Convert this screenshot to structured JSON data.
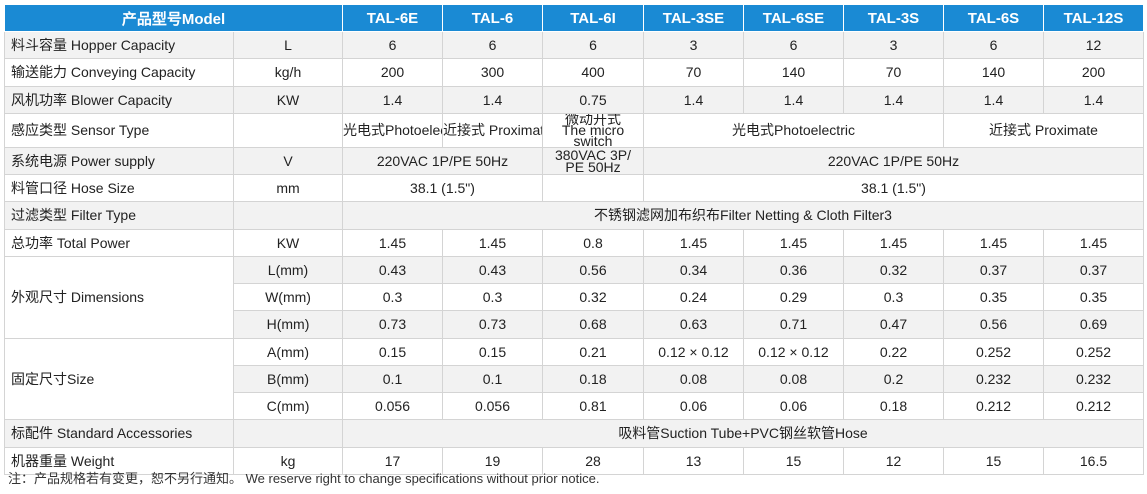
{
  "header": {
    "model": "产品型号Model",
    "models": [
      "TAL-6E",
      "TAL-6",
      "TAL-6I",
      "TAL-3SE",
      "TAL-6SE",
      "TAL-3S",
      "TAL-6S",
      "TAL-12S"
    ]
  },
  "rows": {
    "hopper": {
      "label": "料斗容量 Hopper Capacity",
      "unit": "L",
      "values": [
        "6",
        "6",
        "6",
        "3",
        "6",
        "3",
        "6",
        "12"
      ]
    },
    "conveying": {
      "label": "输送能力 Conveying Capacity",
      "unit": "kg/h",
      "values": [
        "200",
        "300",
        "400",
        "70",
        "140",
        "70",
        "140",
        "200"
      ]
    },
    "blower": {
      "label": "风机功率 Blower Capacity",
      "unit": "KW",
      "values": [
        "1.4",
        "1.4",
        "0.75",
        "1.4",
        "1.4",
        "1.4",
        "1.4",
        "1.4"
      ]
    },
    "sensor": {
      "label": "感应类型 Sensor Type",
      "unit": "",
      "values": [
        "光电式Photoelectric",
        "近接式 Proximate",
        "微动开式\nThe micro switch",
        "光电式Photoelectric",
        "近接式 Proximate"
      ]
    },
    "power_supply": {
      "label": "系统电源 Power supply",
      "unit": "V",
      "values": [
        "220VAC 1P/PE 50Hz",
        "380VAC 3P/\nPE 50Hz",
        "220VAC 1P/PE 50Hz"
      ]
    },
    "hose": {
      "label": "料管口径 Hose Size",
      "unit": "mm",
      "values": [
        "38.1 (1.5\")",
        "",
        "38.1 (1.5\")"
      ]
    },
    "filter": {
      "label": "过滤类型 Filter Type",
      "unit": "",
      "value": "不锈钢滤网加布织布Filter Netting & Cloth Filter3"
    },
    "total_power": {
      "label": "总功率 Total Power",
      "unit": "KW",
      "values": [
        "1.45",
        "1.45",
        "0.8",
        "1.45",
        "1.45",
        "1.45",
        "1.45",
        "1.45"
      ]
    },
    "dimensions": {
      "label": "外观尺寸 Dimensions",
      "sub": [
        {
          "unit": "L(mm)",
          "values": [
            "0.43",
            "0.43",
            "0.56",
            "0.34",
            "0.36",
            "0.32",
            "0.37",
            "0.37"
          ]
        },
        {
          "unit": "W(mm)",
          "values": [
            "0.3",
            "0.3",
            "0.32",
            "0.24",
            "0.29",
            "0.3",
            "0.35",
            "0.35"
          ]
        },
        {
          "unit": "H(mm)",
          "values": [
            "0.73",
            "0.73",
            "0.68",
            "0.63",
            "0.71",
            "0.47",
            "0.56",
            "0.69"
          ]
        }
      ]
    },
    "fixed": {
      "label": "固定尺寸Size",
      "sub": [
        {
          "unit": "A(mm)",
          "values": [
            "0.15",
            "0.15",
            "0.21",
            "0.12 × 0.12",
            "0.12 × 0.12",
            "0.22",
            "0.252",
            "0.252"
          ]
        },
        {
          "unit": "B(mm)",
          "values": [
            "0.1",
            "0.1",
            "0.18",
            "0.08",
            "0.08",
            "0.2",
            "0.232",
            "0.232"
          ]
        },
        {
          "unit": "C(mm)",
          "values": [
            "0.056",
            "0.056",
            "0.81",
            "0.06",
            "0.06",
            "0.18",
            "0.212",
            "0.212"
          ]
        }
      ]
    },
    "accessories": {
      "label": "标配件 Standard Accessories",
      "unit": "",
      "value": "吸料管Suction Tube+PVC钢丝软管Hose"
    },
    "weight": {
      "label": "机器重量 Weight",
      "unit": "kg",
      "values": [
        "17",
        "19",
        "28",
        "13",
        "15",
        "12",
        "15",
        "16.5"
      ]
    }
  },
  "note": "注：产品规格若有变更，恕不另行通知。  We reserve right to change specifications without prior notice."
}
